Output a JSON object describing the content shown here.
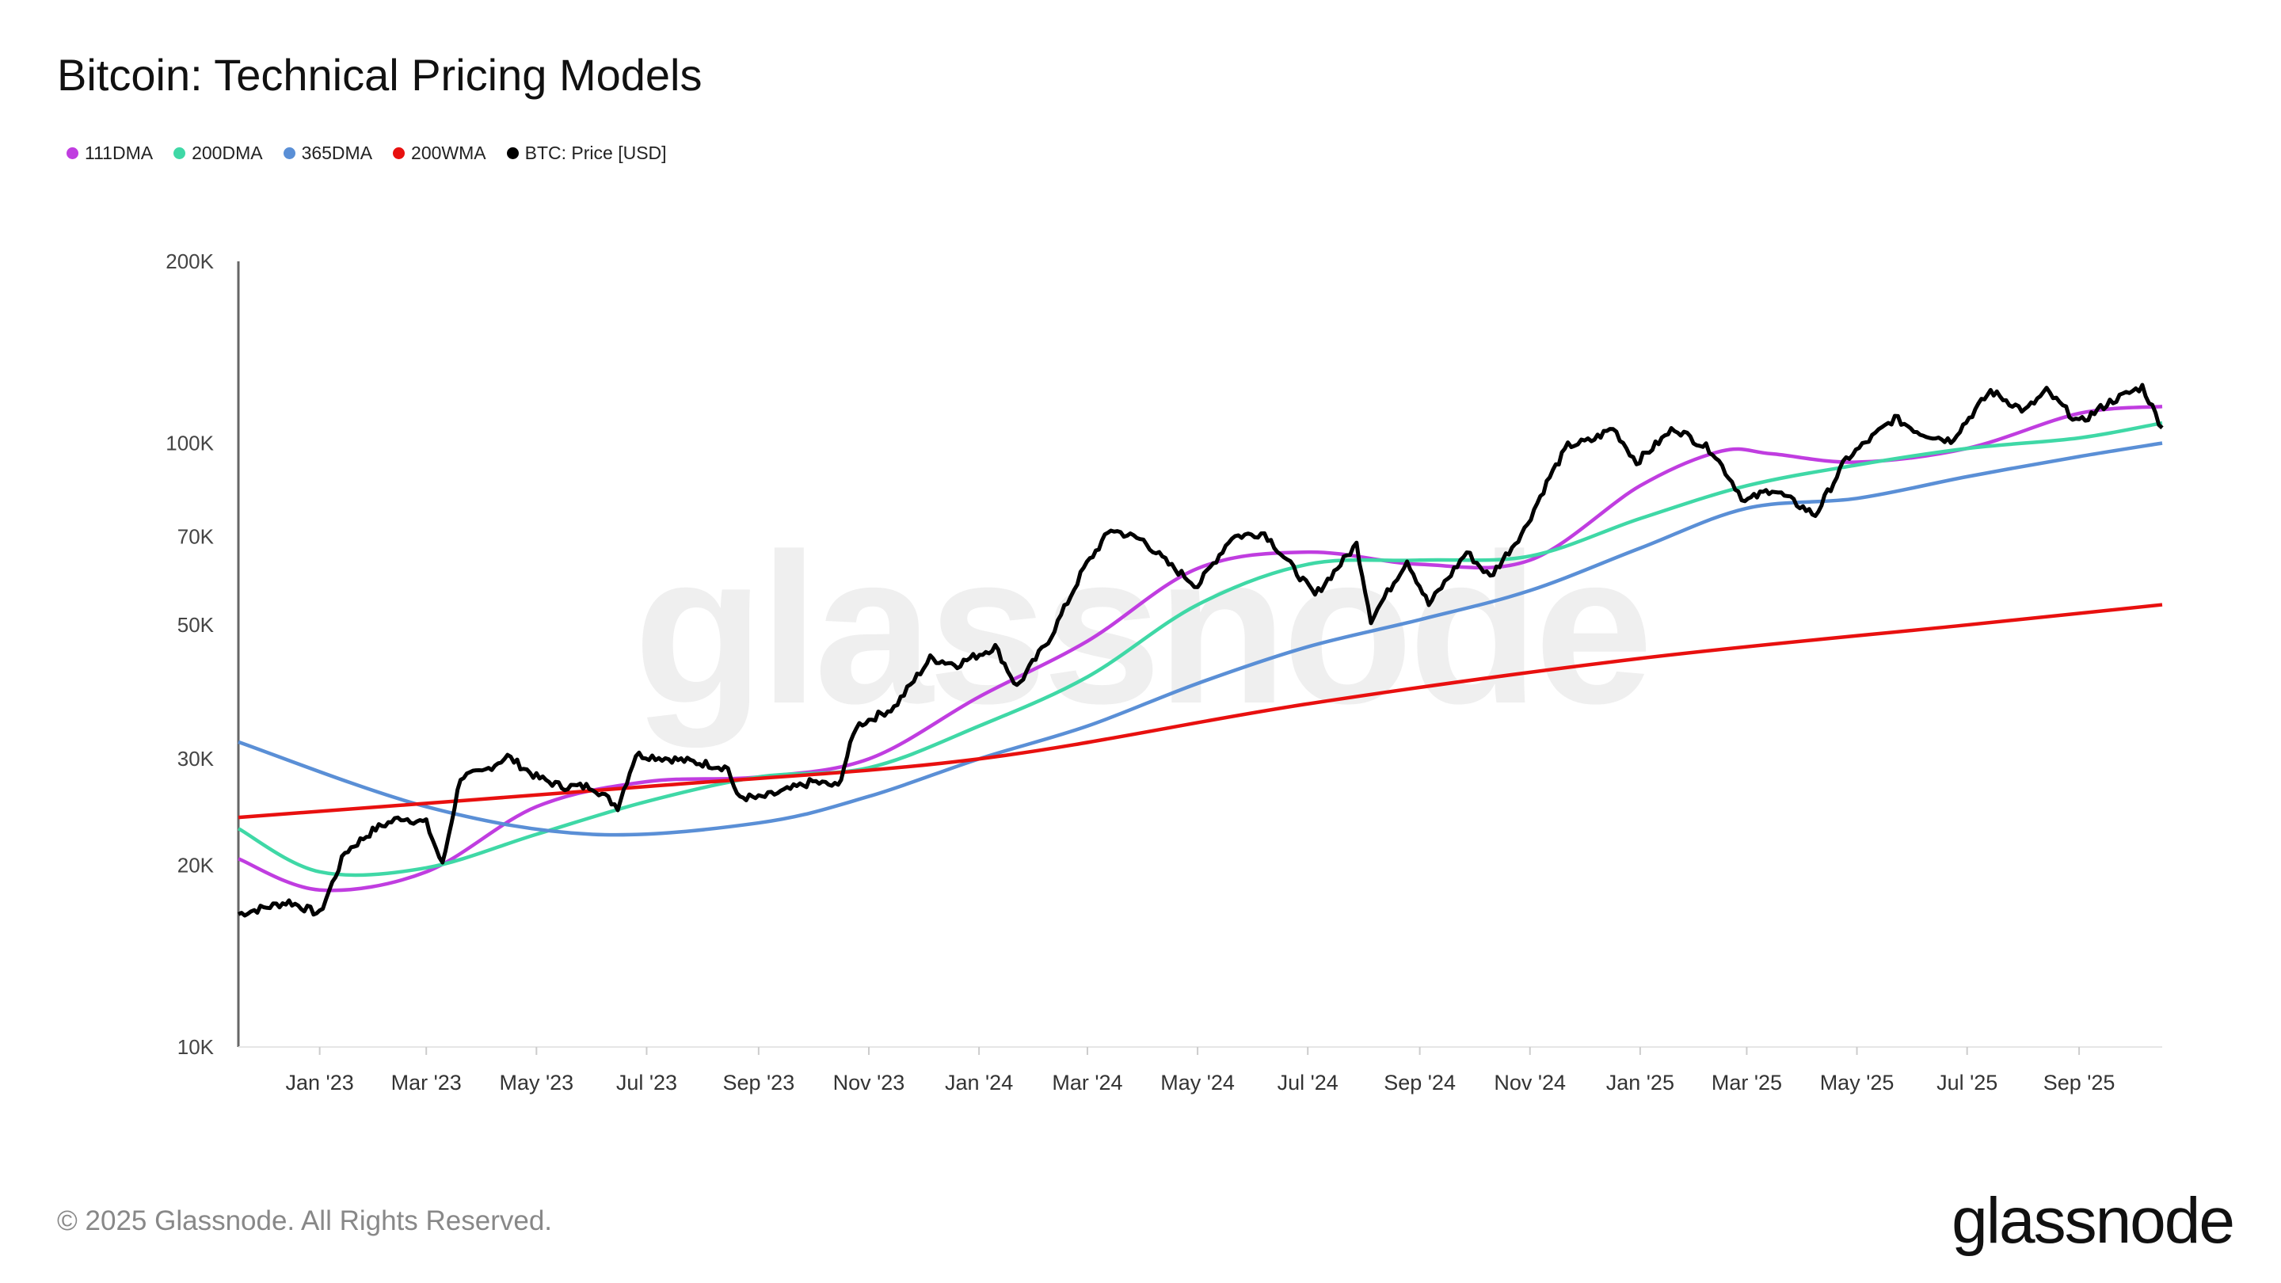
{
  "title": "Bitcoin: Technical Pricing Models",
  "footer": "© 2025 Glassnode. All Rights Reserved.",
  "logo_text": "glassnode",
  "watermark_text": "glassnode",
  "chart_data": {
    "type": "line",
    "title": "Bitcoin: Technical Pricing Models",
    "y_scale": "log",
    "ylim": [
      10000,
      200000
    ],
    "xlim": [
      "2022-11-17",
      "2025-10-17"
    ],
    "y_ticks": [
      {
        "v": 10000,
        "label": "10K"
      },
      {
        "v": 20000,
        "label": "20K"
      },
      {
        "v": 30000,
        "label": "30K"
      },
      {
        "v": 50000,
        "label": "50K"
      },
      {
        "v": 70000,
        "label": "70K"
      },
      {
        "v": 100000,
        "label": "100K"
      },
      {
        "v": 200000,
        "label": "200K"
      }
    ],
    "x_ticks": [
      {
        "d": "2023-01-01",
        "label": "Jan '23"
      },
      {
        "d": "2023-03-01",
        "label": "Mar '23"
      },
      {
        "d": "2023-05-01",
        "label": "May '23"
      },
      {
        "d": "2023-07-01",
        "label": "Jul '23"
      },
      {
        "d": "2023-09-01",
        "label": "Sep '23"
      },
      {
        "d": "2023-11-01",
        "label": "Nov '23"
      },
      {
        "d": "2024-01-01",
        "label": "Jan '24"
      },
      {
        "d": "2024-03-01",
        "label": "Mar '24"
      },
      {
        "d": "2024-05-01",
        "label": "May '24"
      },
      {
        "d": "2024-07-01",
        "label": "Jul '24"
      },
      {
        "d": "2024-09-01",
        "label": "Sep '24"
      },
      {
        "d": "2024-11-01",
        "label": "Nov '24"
      },
      {
        "d": "2025-01-01",
        "label": "Jan '25"
      },
      {
        "d": "2025-03-01",
        "label": "Mar '25"
      },
      {
        "d": "2025-05-01",
        "label": "May '25"
      },
      {
        "d": "2025-07-01",
        "label": "Jul '25"
      },
      {
        "d": "2025-09-01",
        "label": "Sep '25"
      }
    ],
    "grid": false,
    "legend_placement": "top-left",
    "series": [
      {
        "name": "111DMA",
        "color": "#c03de0",
        "points": [
          [
            "2022-11-17",
            20500
          ],
          [
            "2023-01-01",
            18200
          ],
          [
            "2023-03-01",
            19500
          ],
          [
            "2023-05-01",
            25000
          ],
          [
            "2023-07-01",
            27500
          ],
          [
            "2023-09-01",
            28000
          ],
          [
            "2023-11-01",
            30000
          ],
          [
            "2024-01-01",
            38000
          ],
          [
            "2024-03-01",
            47000
          ],
          [
            "2024-05-01",
            62000
          ],
          [
            "2024-07-01",
            66000
          ],
          [
            "2024-09-01",
            63000
          ],
          [
            "2024-11-01",
            64000
          ],
          [
            "2025-01-01",
            85000
          ],
          [
            "2025-02-15",
            97000
          ],
          [
            "2025-03-15",
            96000
          ],
          [
            "2025-05-01",
            93000
          ],
          [
            "2025-07-01",
            98000
          ],
          [
            "2025-09-01",
            112000
          ],
          [
            "2025-10-17",
            115000
          ]
        ]
      },
      {
        "name": "200DMA",
        "color": "#3fd8a6",
        "points": [
          [
            "2022-11-17",
            23000
          ],
          [
            "2023-01-01",
            19500
          ],
          [
            "2023-03-01",
            19800
          ],
          [
            "2023-05-01",
            22500
          ],
          [
            "2023-07-01",
            25500
          ],
          [
            "2023-09-01",
            28000
          ],
          [
            "2023-11-01",
            29000
          ],
          [
            "2024-01-01",
            34000
          ],
          [
            "2024-03-01",
            41000
          ],
          [
            "2024-05-01",
            54000
          ],
          [
            "2024-07-01",
            63000
          ],
          [
            "2024-09-01",
            64000
          ],
          [
            "2024-11-01",
            65000
          ],
          [
            "2025-01-01",
            75000
          ],
          [
            "2025-03-01",
            85000
          ],
          [
            "2025-05-01",
            92000
          ],
          [
            "2025-07-01",
            98000
          ],
          [
            "2025-09-01",
            102000
          ],
          [
            "2025-10-17",
            108000
          ]
        ]
      },
      {
        "name": "365DMA",
        "color": "#5a8fd6",
        "points": [
          [
            "2022-11-17",
            32000
          ],
          [
            "2023-03-01",
            25000
          ],
          [
            "2023-06-01",
            22500
          ],
          [
            "2023-09-01",
            23500
          ],
          [
            "2023-11-01",
            26000
          ],
          [
            "2024-01-01",
            30000
          ],
          [
            "2024-03-01",
            34000
          ],
          [
            "2024-05-01",
            40000
          ],
          [
            "2024-07-01",
            46000
          ],
          [
            "2024-09-01",
            51000
          ],
          [
            "2024-11-01",
            57000
          ],
          [
            "2025-01-01",
            67000
          ],
          [
            "2025-03-01",
            78000
          ],
          [
            "2025-05-01",
            81000
          ],
          [
            "2025-07-01",
            88000
          ],
          [
            "2025-09-01",
            95000
          ],
          [
            "2025-10-17",
            100000
          ]
        ]
      },
      {
        "name": "200WMA",
        "color": "#e8100f",
        "points": [
          [
            "2022-11-17",
            24000
          ],
          [
            "2023-07-01",
            27000
          ],
          [
            "2024-01-01",
            30000
          ],
          [
            "2024-07-01",
            37000
          ],
          [
            "2025-01-01",
            44000
          ],
          [
            "2025-07-01",
            50000
          ],
          [
            "2025-10-17",
            54000
          ]
        ]
      },
      {
        "name": "BTC: Price [USD]",
        "color": "#000000",
        "points": [
          [
            "2022-11-17",
            16600
          ],
          [
            "2022-12-15",
            17400
          ],
          [
            "2023-01-01",
            16600
          ],
          [
            "2023-01-15",
            21000
          ],
          [
            "2023-02-01",
            23000
          ],
          [
            "2023-02-15",
            24000
          ],
          [
            "2023-03-01",
            23500
          ],
          [
            "2023-03-10",
            20000
          ],
          [
            "2023-03-20",
            28000
          ],
          [
            "2023-04-01",
            28500
          ],
          [
            "2023-04-15",
            30300
          ],
          [
            "2023-05-01",
            28000
          ],
          [
            "2023-05-15",
            27000
          ],
          [
            "2023-06-01",
            27000
          ],
          [
            "2023-06-15",
            25000
          ],
          [
            "2023-06-25",
            30500
          ],
          [
            "2023-07-15",
            30000
          ],
          [
            "2023-08-01",
            29500
          ],
          [
            "2023-08-15",
            29000
          ],
          [
            "2023-08-20",
            26000
          ],
          [
            "2023-09-01",
            25800
          ],
          [
            "2023-09-15",
            26500
          ],
          [
            "2023-10-01",
            27500
          ],
          [
            "2023-10-15",
            27000
          ],
          [
            "2023-10-25",
            34000
          ],
          [
            "2023-11-15",
            36500
          ],
          [
            "2023-12-05",
            44000
          ],
          [
            "2023-12-20",
            43000
          ],
          [
            "2024-01-10",
            46000
          ],
          [
            "2024-01-22",
            39500
          ],
          [
            "2024-02-10",
            48000
          ],
          [
            "2024-02-28",
            62000
          ],
          [
            "2024-03-14",
            72000
          ],
          [
            "2024-04-01",
            69000
          ],
          [
            "2024-04-15",
            63000
          ],
          [
            "2024-05-01",
            58000
          ],
          [
            "2024-05-20",
            70000
          ],
          [
            "2024-06-07",
            71000
          ],
          [
            "2024-06-25",
            61000
          ],
          [
            "2024-07-05",
            56000
          ],
          [
            "2024-07-28",
            68000
          ],
          [
            "2024-08-05",
            51000
          ],
          [
            "2024-08-25",
            64000
          ],
          [
            "2024-09-06",
            54000
          ],
          [
            "2024-09-27",
            66000
          ],
          [
            "2024-10-10",
            60000
          ],
          [
            "2024-10-29",
            72000
          ],
          [
            "2024-11-12",
            88000
          ],
          [
            "2024-11-22",
            99000
          ],
          [
            "2024-12-05",
            101000
          ],
          [
            "2024-12-17",
            106000
          ],
          [
            "2024-12-30",
            93000
          ],
          [
            "2025-01-20",
            106000
          ],
          [
            "2025-02-10",
            97000
          ],
          [
            "2025-02-28",
            80000
          ],
          [
            "2025-03-15",
            84000
          ],
          [
            "2025-04-08",
            76000
          ],
          [
            "2025-04-25",
            94000
          ],
          [
            "2025-05-22",
            110000
          ],
          [
            "2025-06-05",
            104000
          ],
          [
            "2025-06-22",
            101000
          ],
          [
            "2025-07-14",
            122000
          ],
          [
            "2025-08-02",
            113000
          ],
          [
            "2025-08-14",
            122000
          ],
          [
            "2025-09-01",
            108000
          ],
          [
            "2025-09-18",
            117000
          ],
          [
            "2025-10-06",
            124000
          ],
          [
            "2025-10-17",
            106000
          ]
        ]
      }
    ]
  }
}
